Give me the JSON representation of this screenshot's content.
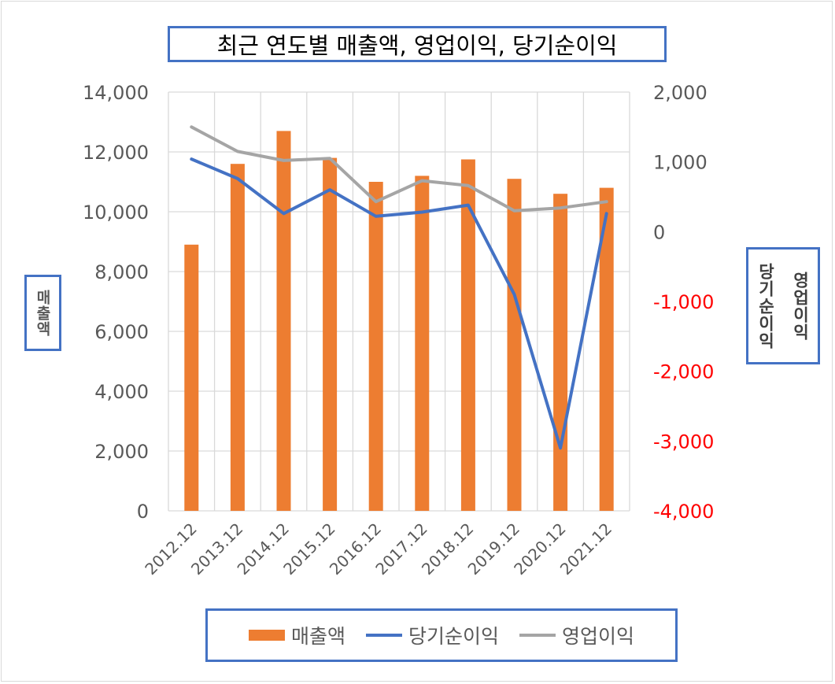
{
  "chart_data": {
    "type": "bar",
    "title": "최근 연도별 매출액, 영업이익, 당기순이익",
    "categories": [
      "2012.12",
      "2013.12",
      "2014.12",
      "2015.12",
      "2016.12",
      "2017.12",
      "2018.12",
      "2019.12",
      "2020.12",
      "2021.12"
    ],
    "series": [
      {
        "name": "매출액",
        "type": "bar",
        "axis": "left",
        "color": "#ed7d31",
        "values": [
          8900,
          11600,
          12700,
          11800,
          11000,
          11200,
          11750,
          11100,
          10600,
          10800
        ]
      },
      {
        "name": "당기순이익",
        "type": "line",
        "axis": "right",
        "color": "#4472c4",
        "values": [
          1040,
          760,
          260,
          600,
          220,
          280,
          380,
          -900,
          -3100,
          260
        ]
      },
      {
        "name": "영업이익",
        "type": "line",
        "axis": "right",
        "color": "#a5a5a5",
        "values": [
          1500,
          1150,
          1020,
          1050,
          430,
          730,
          660,
          300,
          340,
          430
        ]
      }
    ],
    "ylabel_left": "매출액",
    "ylabel_right": [
      "당기순이익",
      "영업이익"
    ],
    "ylim_left": [
      0,
      14000
    ],
    "ylim_right": [
      -4000,
      2000
    ],
    "yticks_left": [
      "0",
      "2,000",
      "4,000",
      "6,000",
      "8,000",
      "10,000",
      "12,000",
      "14,000"
    ],
    "yticks_right": [
      "-4,000",
      "-3,000",
      "-2,000",
      "-1,000",
      "0",
      "1,000",
      "2,000"
    ],
    "negative_tick_color": "#ff0000",
    "grid": true,
    "legend_position": "bottom"
  }
}
